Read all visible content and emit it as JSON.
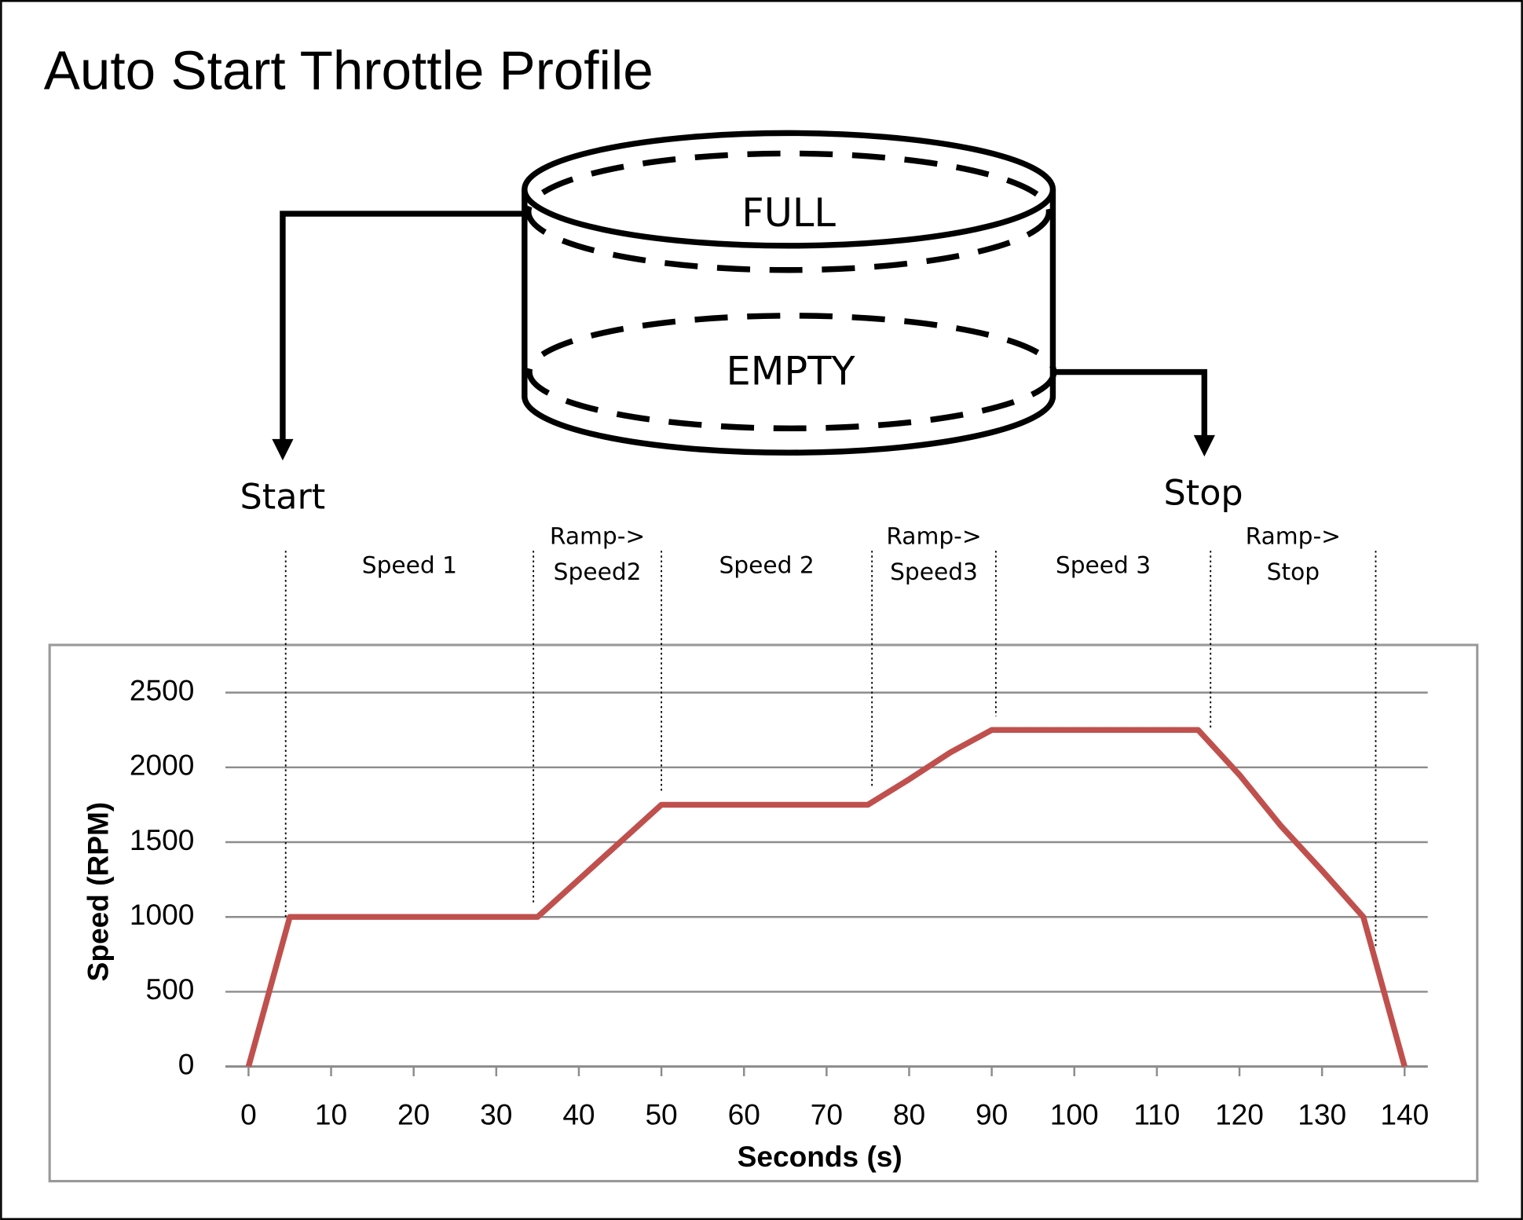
{
  "chart_data": {
    "type": "line",
    "title": "Auto Start Throttle Profile",
    "diagram": {
      "full_label": "FULL",
      "empty_label": "EMPTY",
      "start_label": "Start",
      "stop_label": "Stop"
    },
    "phases": [
      {
        "label": [
          "Speed 1"
        ]
      },
      {
        "label": [
          "Ramp->",
          "Speed2"
        ]
      },
      {
        "label": [
          "Speed 2"
        ]
      },
      {
        "label": [
          "Ramp->",
          "Speed3"
        ]
      },
      {
        "label": [
          "Speed 3"
        ]
      },
      {
        "label": [
          "Ramp->",
          "Stop"
        ]
      }
    ],
    "phase_boundaries": [
      4.5,
      34.5,
      50,
      75.5,
      90.5,
      116.5,
      136.5
    ],
    "x": [
      0,
      5,
      35,
      45,
      50,
      75,
      80,
      85,
      90,
      115,
      120,
      125,
      130,
      135,
      140
    ],
    "series": [
      {
        "color": "#c0504d",
        "values": [
          0,
          1000,
          1000,
          1500,
          1750,
          1750,
          1920,
          2100,
          2250,
          2250,
          1950,
          1610,
          1310,
          1000,
          0
        ]
      }
    ],
    "x_label": "Seconds (s)",
    "y_label": "Speed (RPM)",
    "xlim": [
      -2.8,
      142.8
    ],
    "xticks": [
      0,
      10,
      20,
      30,
      40,
      50,
      60,
      70,
      80,
      90,
      100,
      110,
      120,
      130,
      140
    ],
    "ylim": [
      0,
      2500
    ],
    "yticks": [
      0,
      500,
      1000,
      1500,
      2000,
      2500
    ],
    "grid": true
  }
}
